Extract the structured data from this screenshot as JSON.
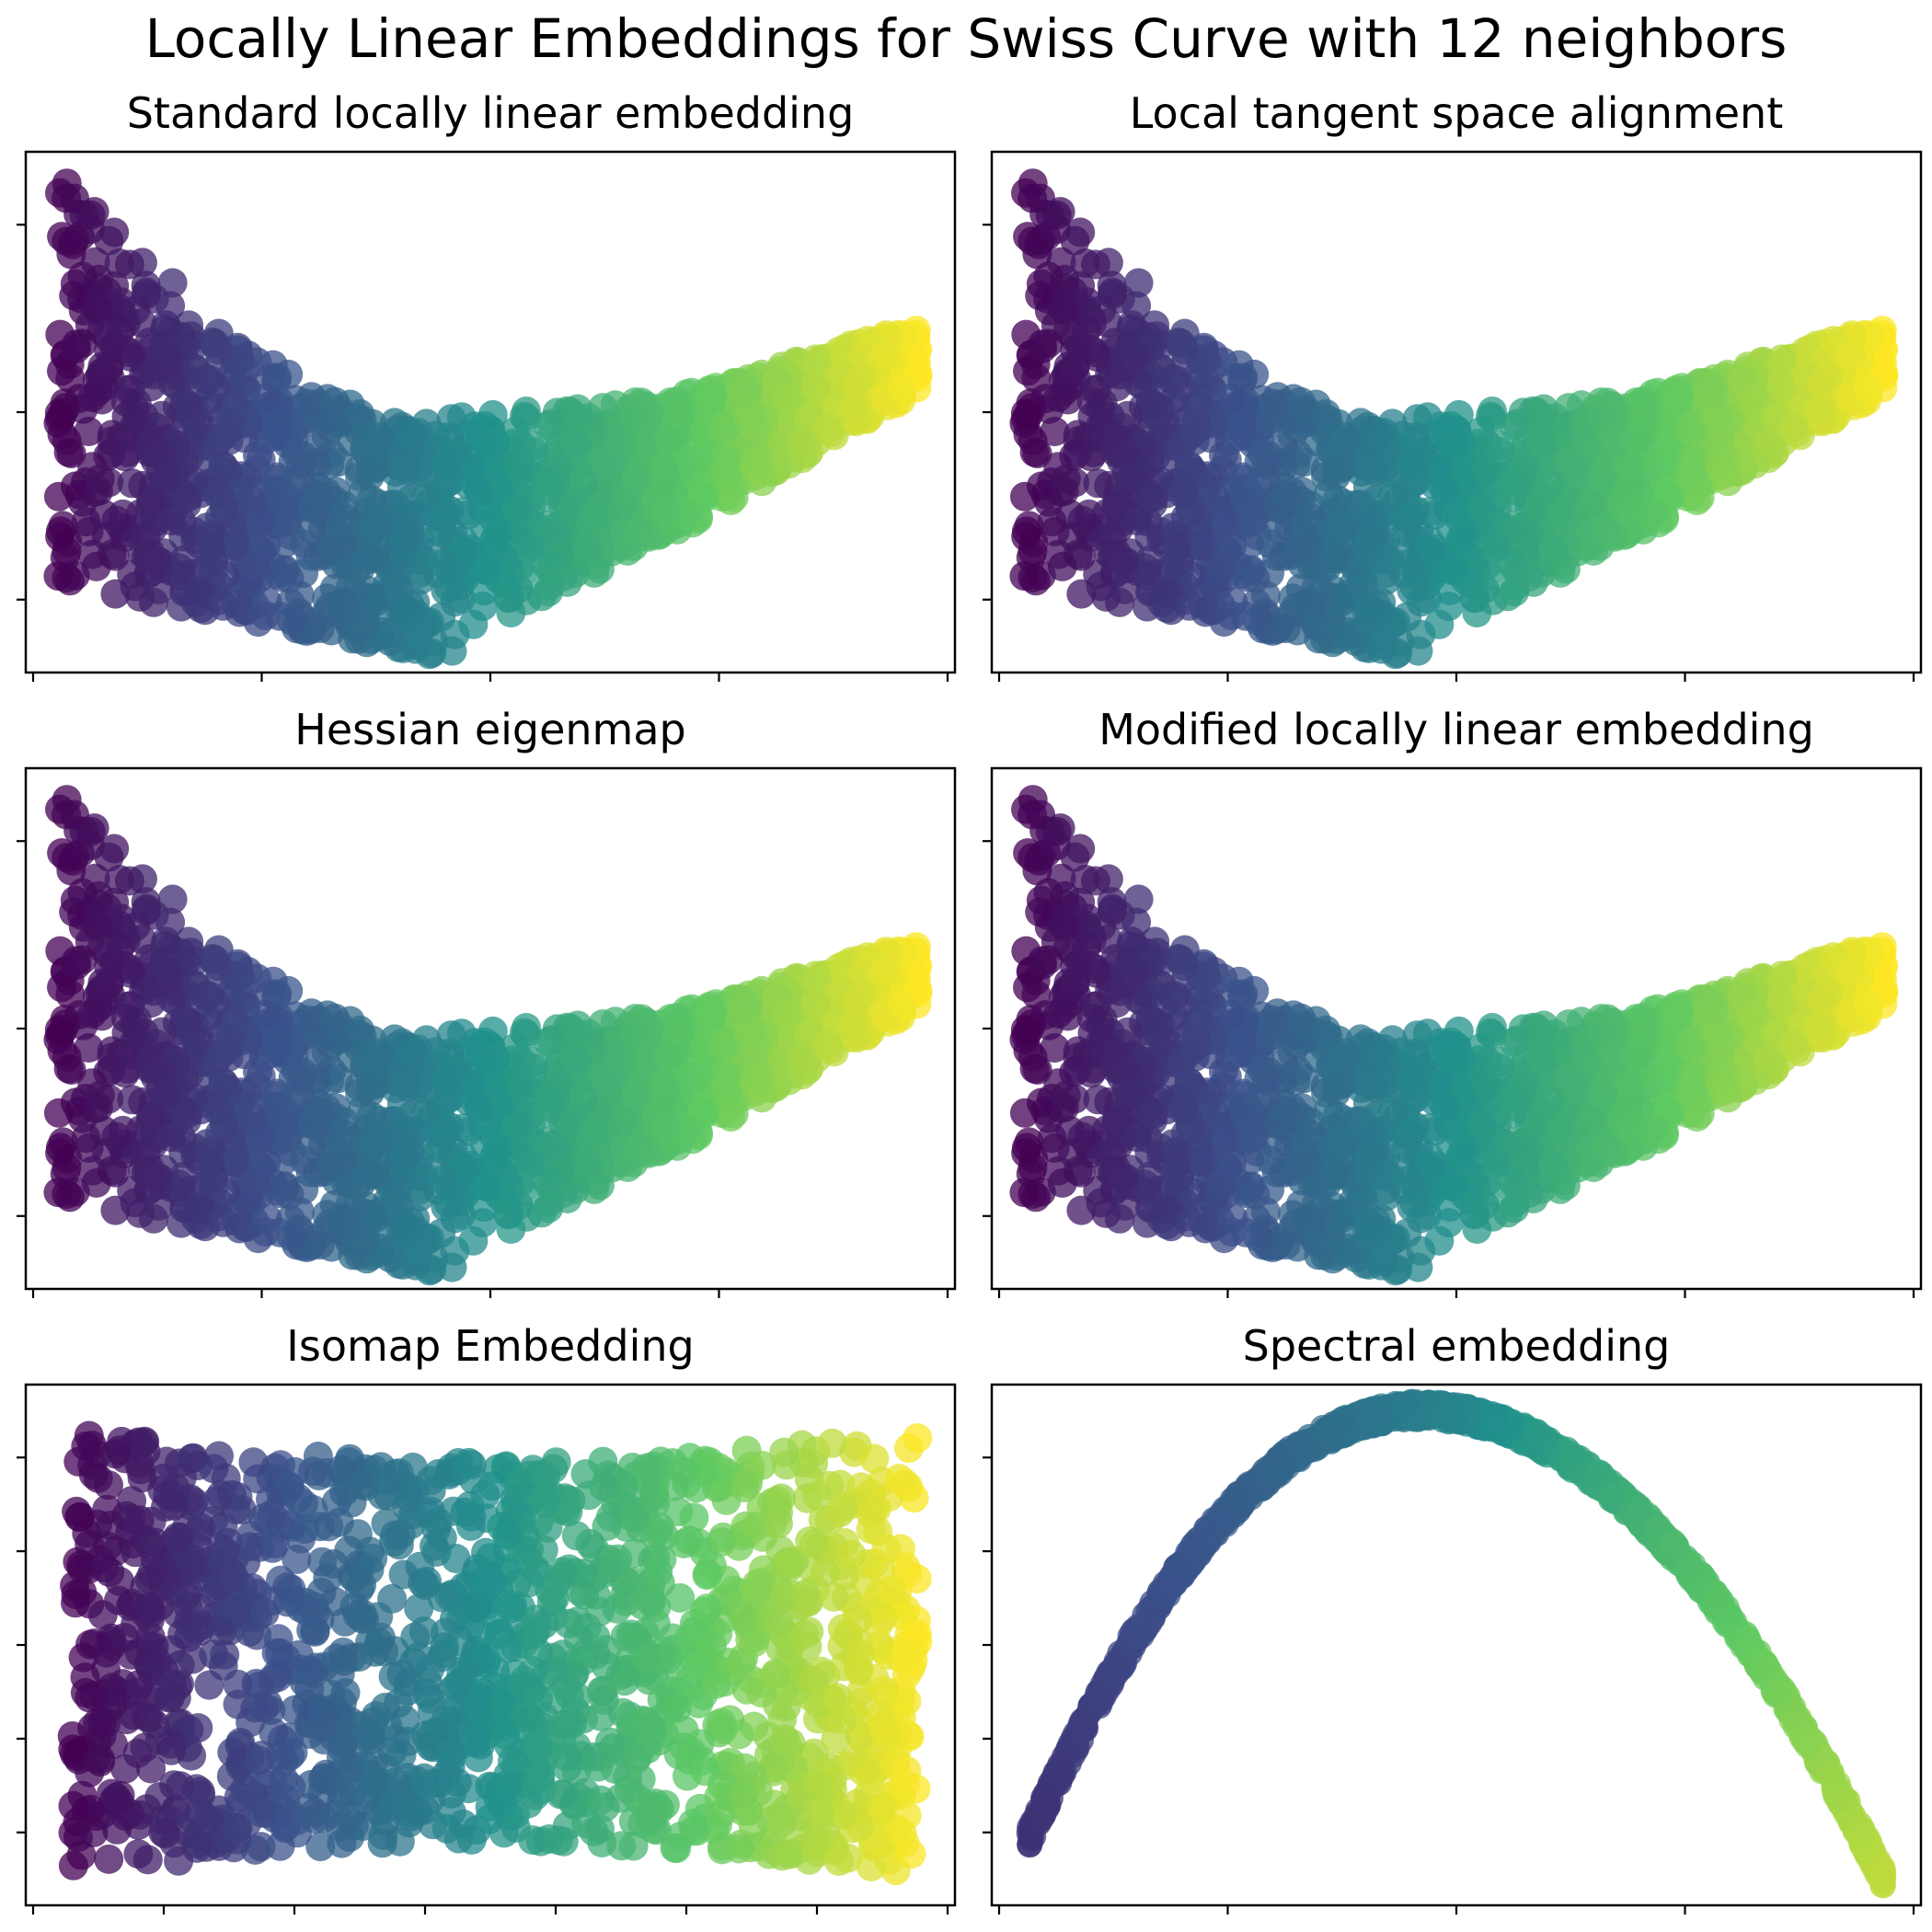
{
  "figure": {
    "suptitle": "Locally Linear Embeddings for Swiss Curve with 12 neighbors"
  },
  "chart_data": [
    {
      "type": "scatter",
      "title": "Standard locally linear embedding",
      "xlabel": "",
      "ylabel": "",
      "grid": false,
      "shape": "lle",
      "colormap": "viridis",
      "colorscale_stops": [
        "#440154",
        "#3b528b",
        "#21918c",
        "#5ec962",
        "#fde725"
      ],
      "xlim": [
        0,
        1
      ],
      "ylim": [
        0,
        1
      ],
      "xtick_count": 5,
      "ytick_count": 3,
      "point_count": 1500
    },
    {
      "type": "scatter",
      "title": "Local tangent space alignment",
      "xlabel": "",
      "ylabel": "",
      "grid": false,
      "shape": "lle",
      "colormap": "viridis",
      "colorscale_stops": [
        "#440154",
        "#3b528b",
        "#21918c",
        "#5ec962",
        "#fde725"
      ],
      "xlim": [
        0,
        1
      ],
      "ylim": [
        0,
        1
      ],
      "xtick_count": 5,
      "ytick_count": 3,
      "point_count": 1500
    },
    {
      "type": "scatter",
      "title": "Hessian eigenmap",
      "xlabel": "",
      "ylabel": "",
      "grid": false,
      "shape": "lle",
      "colormap": "viridis",
      "colorscale_stops": [
        "#440154",
        "#3b528b",
        "#21918c",
        "#5ec962",
        "#fde725"
      ],
      "xlim": [
        0,
        1
      ],
      "ylim": [
        0,
        1
      ],
      "xtick_count": 5,
      "ytick_count": 3,
      "point_count": 1500
    },
    {
      "type": "scatter",
      "title": "Modified locally linear embedding",
      "xlabel": "",
      "ylabel": "",
      "grid": false,
      "shape": "lle",
      "colormap": "viridis",
      "colorscale_stops": [
        "#440154",
        "#3b528b",
        "#21918c",
        "#5ec962",
        "#fde725"
      ],
      "xlim": [
        0,
        1
      ],
      "ylim": [
        0,
        1
      ],
      "xtick_count": 5,
      "ytick_count": 3,
      "point_count": 1500
    },
    {
      "type": "scatter",
      "title": "Isomap Embedding",
      "xlabel": "",
      "ylabel": "",
      "grid": false,
      "shape": "isomap",
      "colormap": "viridis",
      "colorscale_stops": [
        "#440154",
        "#3b528b",
        "#21918c",
        "#5ec962",
        "#fde725"
      ],
      "xlim": [
        0,
        1
      ],
      "ylim": [
        0,
        1
      ],
      "xtick_count": 8,
      "ytick_count": 5,
      "point_count": 1500
    },
    {
      "type": "scatter",
      "title": "Spectral embedding",
      "xlabel": "",
      "ylabel": "",
      "grid": false,
      "shape": "spectral",
      "colormap": "viridis",
      "colorscale_stops": [
        "#440154",
        "#3b528b",
        "#21918c",
        "#5ec962",
        "#fde725"
      ],
      "xlim": [
        0,
        1
      ],
      "ylim": [
        0,
        1
      ],
      "xtick_count": 5,
      "ytick_count": 5,
      "point_count": 1500
    }
  ]
}
